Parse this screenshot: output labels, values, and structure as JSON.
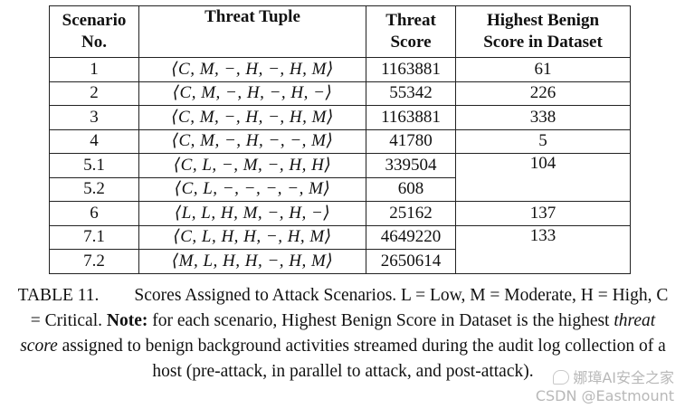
{
  "table": {
    "headers": [
      [
        "Scenario",
        "No."
      ],
      [
        "Threat Tuple"
      ],
      [
        "Threat",
        "Score"
      ],
      [
        "Highest Benign",
        "Score in Dataset"
      ]
    ],
    "rows": [
      {
        "scenario": "1",
        "tuple": "⟨C, M, −, H, −, H, M⟩",
        "score": "1163881",
        "benign": "61",
        "benign_span": 1
      },
      {
        "scenario": "2",
        "tuple": "⟨C, M, −, H, −, H, −⟩",
        "score": "55342",
        "benign": "226",
        "benign_span": 1
      },
      {
        "scenario": "3",
        "tuple": "⟨C, M, −, H, −, H, M⟩",
        "score": "1163881",
        "benign": "338",
        "benign_span": 1
      },
      {
        "scenario": "4",
        "tuple": "⟨C, M, −, H, −, −, M⟩",
        "score": "41780",
        "benign": "5",
        "benign_span": 1
      },
      {
        "scenario": "5.1",
        "tuple": "⟨C, L, −, M, −, H, H⟩",
        "score": "339504",
        "benign": "104",
        "benign_span": 2
      },
      {
        "scenario": "5.2",
        "tuple": "⟨C, L, −, −, −, −, M⟩",
        "score": "608",
        "benign": null,
        "benign_span": 0
      },
      {
        "scenario": "6",
        "tuple": "⟨L, L, H, M, −, H, −⟩",
        "score": "25162",
        "benign": "137",
        "benign_span": 1
      },
      {
        "scenario": "7.1",
        "tuple": "⟨C, L, H, H, −, H, M⟩",
        "score": "4649220",
        "benign": "133",
        "benign_span": 2
      },
      {
        "scenario": "7.2",
        "tuple": "⟨M, L, H, H, −, H, M⟩",
        "score": "2650614",
        "benign": null,
        "benign_span": 0
      }
    ]
  },
  "caption": {
    "label": "TABLE 11.",
    "text1": "Scores Assigned to Attack Scenarios. L = Low, M = Moderate, H = High, C = Critical.",
    "note_label": "Note:",
    "text2": "for each scenario, Highest Benign Score in Dataset is the highest",
    "emph": "threat score",
    "text3": "assigned to benign background activities streamed during the audit log collection of a host (pre-attack, in parallel to attack, and post-attack)."
  },
  "watermark": {
    "line1": "娜璋AI安全之家",
    "line2": "CSDN @Eastmount",
    "icon": "chat-bubble-icon"
  }
}
